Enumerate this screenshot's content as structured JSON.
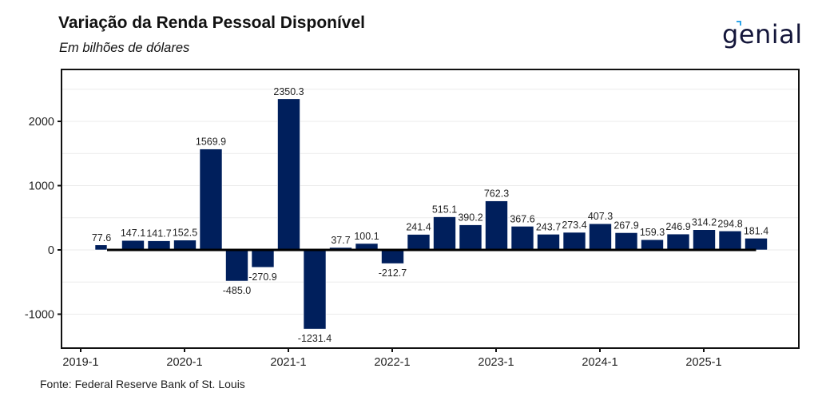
{
  "header": {
    "title": "Variação da Renda Pessoal Disponível",
    "subtitle": "Em bilhões de dólares",
    "logo_text": "genial"
  },
  "footer": {
    "source": "Fonte: Federal Reserve Bank of St. Louis"
  },
  "colors": {
    "bar": "#001f5c",
    "zero_line": "#000000",
    "grid": "#ebebeb",
    "logo": "#14163a",
    "logo_accent": "#2fa6ea"
  },
  "chart_data": {
    "type": "bar",
    "title": "Variação da Renda Pessoal Disponível",
    "subtitle": "Em bilhões de dólares",
    "xlabel": "",
    "ylabel": "",
    "ylim": [
      -1500,
      2500
    ],
    "y_ticks": [
      -1000,
      0,
      1000,
      2000
    ],
    "y_tick_labels": [
      "-1000",
      "0",
      "1000",
      "2000"
    ],
    "x_tick_labels": [
      "2019-1",
      "2020-1",
      "2021-1",
      "2022-1",
      "2023-1",
      "2024-1",
      "2025-1"
    ],
    "grid": true,
    "legend": "none",
    "categories": [
      "2019-2",
      "2019-3",
      "2019-4",
      "2020-1",
      "2020-2",
      "2020-3",
      "2020-4",
      "2021-1",
      "2021-2",
      "2021-3",
      "2021-4",
      "2022-1",
      "2022-2",
      "2022-3",
      "2022-4",
      "2023-1",
      "2023-2",
      "2023-3",
      "2023-4",
      "2024-1",
      "2024-2",
      "2024-3",
      "2024-4",
      "2025-1",
      "2025-2",
      "2025-3"
    ],
    "values": [
      77.6,
      147.1,
      141.7,
      152.5,
      1569.9,
      -485.0,
      -270.9,
      2350.3,
      -1231.4,
      37.7,
      100.1,
      -212.7,
      241.4,
      515.1,
      390.2,
      762.3,
      367.6,
      243.7,
      273.4,
      407.3,
      267.9,
      159.3,
      246.9,
      314.2,
      294.8,
      181.4
    ],
    "data_labels": [
      "77.6",
      "147.1",
      "141.7",
      "152.5",
      "1569.9",
      "-485.0",
      "-270.9",
      "2350.3",
      "-1231.4",
      "37.7",
      "100.1",
      "-212.7",
      "241.4",
      "515.1",
      "390.2",
      "762.3",
      "367.6",
      "243.7",
      "273.4",
      "407.3",
      "267.9",
      "159.3",
      "246.9",
      "314.2",
      "294.8",
      "181.4"
    ],
    "source": "Fonte: Federal Reserve Bank of St. Louis"
  }
}
